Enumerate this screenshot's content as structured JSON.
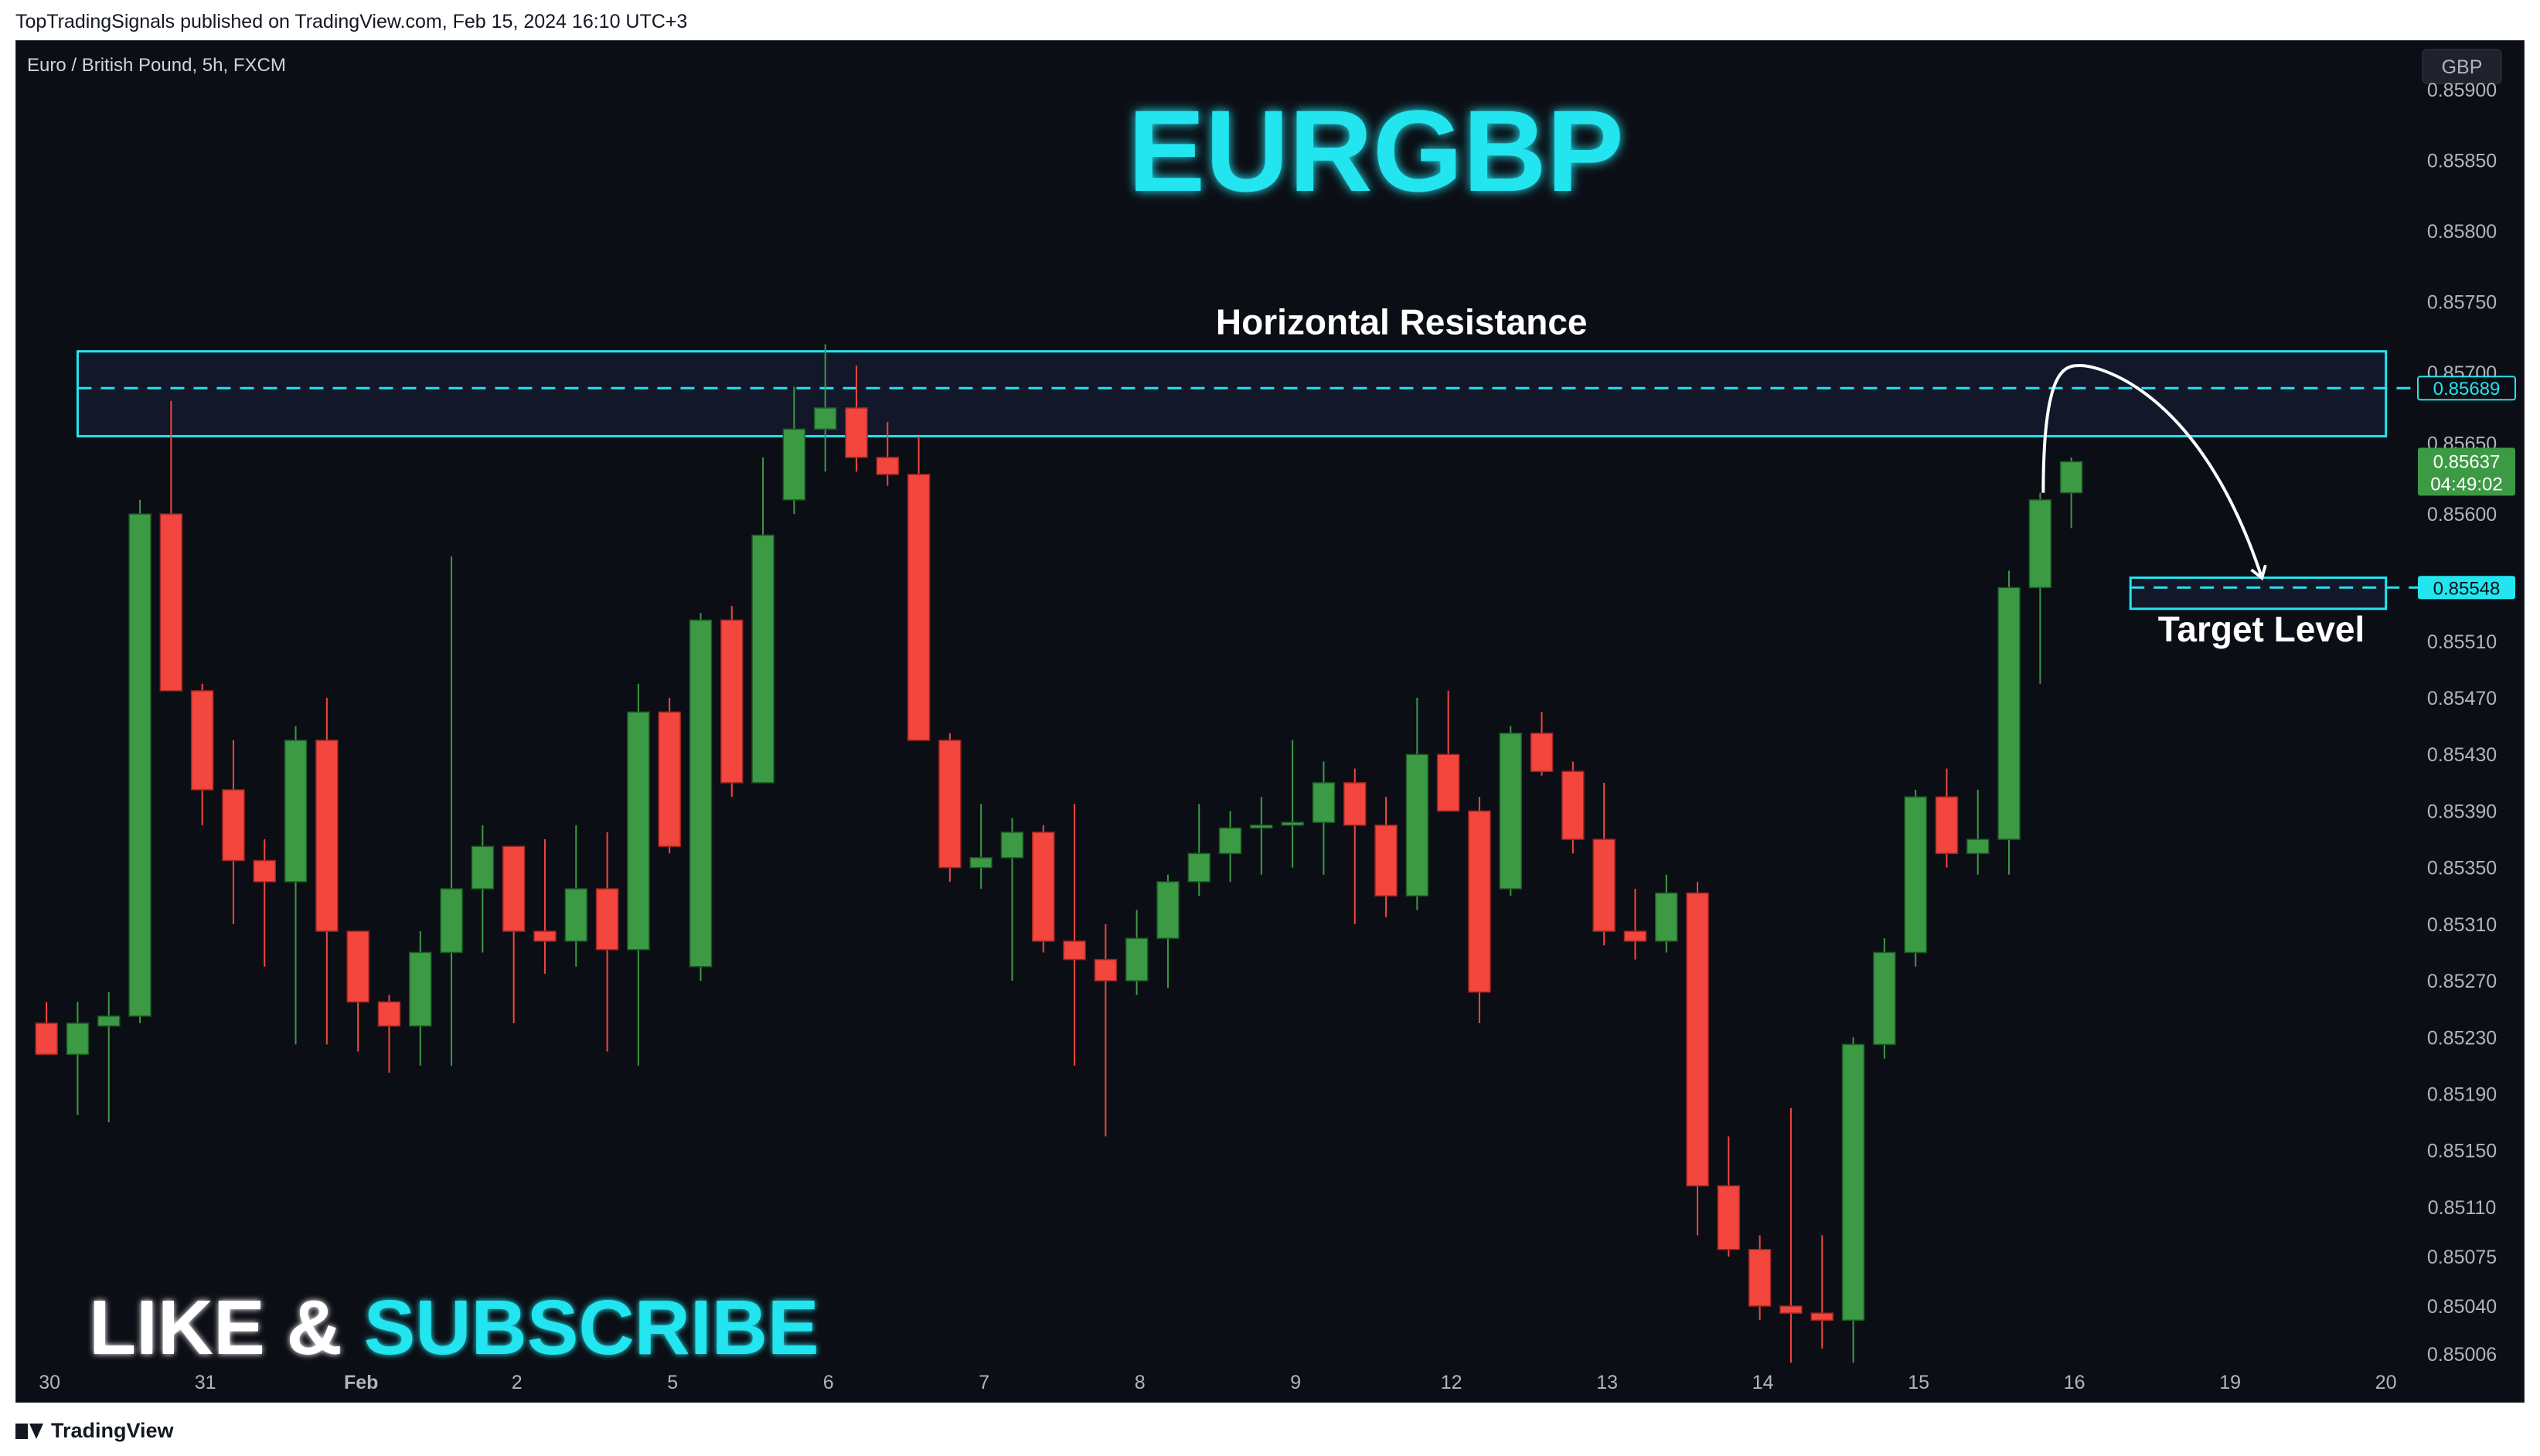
{
  "publish_line": "TopTradingSignals published on TradingView.com, Feb 15, 2024 16:10 UTC+3",
  "footer_logo_text": "TradingView",
  "colors": {
    "background": "#0c0e15",
    "bull": "#3c9a45",
    "bear": "#f2463e",
    "accent": "#22e5ef",
    "axis_text": "#b2b5be"
  },
  "chart_data": {
    "type": "candlestick",
    "symbol_label": "Euro / British Pound, 5h, FXCM",
    "currency": "GBP",
    "title": "EURGBP",
    "ylim": [
      0.84987,
      0.85935
    ],
    "y_ticks": [
      "0.85900",
      "0.85850",
      "0.85800",
      "0.85750",
      "0.85700",
      "0.85650",
      "0.85600",
      "0.85510",
      "0.85470",
      "0.85430",
      "0.85390",
      "0.85350",
      "0.85310",
      "0.85270",
      "0.85230",
      "0.85190",
      "0.85150",
      "0.85110",
      "0.85075",
      "0.85040",
      "0.85006"
    ],
    "x_ticks": [
      {
        "label": "30",
        "index": 0.6
      },
      {
        "label": "31",
        "index": 5.6
      },
      {
        "label": "Feb",
        "index": 10.6
      },
      {
        "label": "2",
        "index": 15.6
      },
      {
        "label": "5",
        "index": 20.6
      },
      {
        "label": "6",
        "index": 25.6
      },
      {
        "label": "7",
        "index": 30.6
      },
      {
        "label": "8",
        "index": 35.6
      },
      {
        "label": "9",
        "index": 40.6
      },
      {
        "label": "12",
        "index": 45.6
      },
      {
        "label": "13",
        "index": 50.6
      },
      {
        "label": "14",
        "index": 55.6
      },
      {
        "label": "15",
        "index": 60.6
      },
      {
        "label": "16",
        "index": 65.6
      },
      {
        "label": "19",
        "index": 70.6
      },
      {
        "label": "20",
        "index": 75.6
      }
    ],
    "candles": [
      {
        "o": 0.8524,
        "h": 0.85255,
        "l": 0.8522,
        "c": 0.85218
      },
      {
        "o": 0.85218,
        "h": 0.85255,
        "l": 0.85175,
        "c": 0.8524
      },
      {
        "o": 0.85238,
        "h": 0.85262,
        "l": 0.8517,
        "c": 0.85245
      },
      {
        "o": 0.85245,
        "h": 0.8561,
        "l": 0.8524,
        "c": 0.856
      },
      {
        "o": 0.856,
        "h": 0.8568,
        "l": 0.85475,
        "c": 0.85475
      },
      {
        "o": 0.85475,
        "h": 0.8548,
        "l": 0.8538,
        "c": 0.85405
      },
      {
        "o": 0.85405,
        "h": 0.8544,
        "l": 0.8531,
        "c": 0.85355
      },
      {
        "o": 0.85355,
        "h": 0.8537,
        "l": 0.8528,
        "c": 0.8534
      },
      {
        "o": 0.8534,
        "h": 0.8545,
        "l": 0.85225,
        "c": 0.8544
      },
      {
        "o": 0.8544,
        "h": 0.8547,
        "l": 0.85225,
        "c": 0.85305
      },
      {
        "o": 0.85305,
        "h": 0.85305,
        "l": 0.8522,
        "c": 0.85255
      },
      {
        "o": 0.85255,
        "h": 0.8526,
        "l": 0.85205,
        "c": 0.85238
      },
      {
        "o": 0.85238,
        "h": 0.85305,
        "l": 0.8521,
        "c": 0.8529
      },
      {
        "o": 0.8529,
        "h": 0.8557,
        "l": 0.8521,
        "c": 0.85335
      },
      {
        "o": 0.85335,
        "h": 0.8538,
        "l": 0.8529,
        "c": 0.85365
      },
      {
        "o": 0.85365,
        "h": 0.85365,
        "l": 0.8524,
        "c": 0.85305
      },
      {
        "o": 0.85305,
        "h": 0.8537,
        "l": 0.85275,
        "c": 0.85298
      },
      {
        "o": 0.85298,
        "h": 0.8538,
        "l": 0.8528,
        "c": 0.85335
      },
      {
        "o": 0.85335,
        "h": 0.85375,
        "l": 0.8522,
        "c": 0.85292
      },
      {
        "o": 0.85292,
        "h": 0.8548,
        "l": 0.8521,
        "c": 0.8546
      },
      {
        "o": 0.8546,
        "h": 0.8547,
        "l": 0.8536,
        "c": 0.85365
      },
      {
        "o": 0.8528,
        "h": 0.8553,
        "l": 0.8527,
        "c": 0.85525
      },
      {
        "o": 0.85525,
        "h": 0.85535,
        "l": 0.854,
        "c": 0.8541
      },
      {
        "o": 0.8541,
        "h": 0.8564,
        "l": 0.8541,
        "c": 0.85585
      },
      {
        "o": 0.8561,
        "h": 0.8569,
        "l": 0.856,
        "c": 0.8566
      },
      {
        "o": 0.8566,
        "h": 0.8572,
        "l": 0.8563,
        "c": 0.85675
      },
      {
        "o": 0.85675,
        "h": 0.85705,
        "l": 0.8563,
        "c": 0.8564
      },
      {
        "o": 0.8564,
        "h": 0.85665,
        "l": 0.8562,
        "c": 0.85628
      },
      {
        "o": 0.85628,
        "h": 0.85655,
        "l": 0.8544,
        "c": 0.8544
      },
      {
        "o": 0.8544,
        "h": 0.85445,
        "l": 0.8534,
        "c": 0.8535
      },
      {
        "o": 0.8535,
        "h": 0.85395,
        "l": 0.85335,
        "c": 0.85357
      },
      {
        "o": 0.85357,
        "h": 0.85385,
        "l": 0.8527,
        "c": 0.85375
      },
      {
        "o": 0.85375,
        "h": 0.8538,
        "l": 0.8529,
        "c": 0.85298
      },
      {
        "o": 0.85298,
        "h": 0.85395,
        "l": 0.8521,
        "c": 0.85285
      },
      {
        "o": 0.85285,
        "h": 0.8531,
        "l": 0.8516,
        "c": 0.8527
      },
      {
        "o": 0.8527,
        "h": 0.8532,
        "l": 0.8526,
        "c": 0.853
      },
      {
        "o": 0.853,
        "h": 0.85345,
        "l": 0.85265,
        "c": 0.8534
      },
      {
        "o": 0.8534,
        "h": 0.85395,
        "l": 0.8533,
        "c": 0.8536
      },
      {
        "o": 0.8536,
        "h": 0.8539,
        "l": 0.8534,
        "c": 0.85378
      },
      {
        "o": 0.85378,
        "h": 0.854,
        "l": 0.85345,
        "c": 0.8538
      },
      {
        "o": 0.8538,
        "h": 0.8544,
        "l": 0.8535,
        "c": 0.85382
      },
      {
        "o": 0.85382,
        "h": 0.85425,
        "l": 0.85345,
        "c": 0.8541
      },
      {
        "o": 0.8541,
        "h": 0.8542,
        "l": 0.8531,
        "c": 0.8538
      },
      {
        "o": 0.8538,
        "h": 0.854,
        "l": 0.85315,
        "c": 0.8533
      },
      {
        "o": 0.8533,
        "h": 0.8547,
        "l": 0.8532,
        "c": 0.8543
      },
      {
        "o": 0.8543,
        "h": 0.85475,
        "l": 0.8539,
        "c": 0.8539
      },
      {
        "o": 0.8539,
        "h": 0.854,
        "l": 0.8524,
        "c": 0.85262
      },
      {
        "o": 0.85335,
        "h": 0.8545,
        "l": 0.8533,
        "c": 0.85445
      },
      {
        "o": 0.85445,
        "h": 0.8546,
        "l": 0.85415,
        "c": 0.85418
      },
      {
        "o": 0.85418,
        "h": 0.85425,
        "l": 0.8536,
        "c": 0.8537
      },
      {
        "o": 0.8537,
        "h": 0.8541,
        "l": 0.85295,
        "c": 0.85305
      },
      {
        "o": 0.85305,
        "h": 0.85335,
        "l": 0.85285,
        "c": 0.85298
      },
      {
        "o": 0.85298,
        "h": 0.85345,
        "l": 0.8529,
        "c": 0.85332
      },
      {
        "o": 0.85332,
        "h": 0.8534,
        "l": 0.8509,
        "c": 0.85125
      },
      {
        "o": 0.85125,
        "h": 0.8516,
        "l": 0.85075,
        "c": 0.8508
      },
      {
        "o": 0.8508,
        "h": 0.8509,
        "l": 0.8503,
        "c": 0.8504
      },
      {
        "o": 0.8504,
        "h": 0.8518,
        "l": 0.85,
        "c": 0.85035
      },
      {
        "o": 0.85035,
        "h": 0.8509,
        "l": 0.8501,
        "c": 0.8503
      },
      {
        "o": 0.8503,
        "h": 0.8523,
        "l": 0.85,
        "c": 0.85225
      },
      {
        "o": 0.85225,
        "h": 0.853,
        "l": 0.85215,
        "c": 0.8529
      },
      {
        "o": 0.8529,
        "h": 0.85405,
        "l": 0.8528,
        "c": 0.854
      },
      {
        "o": 0.854,
        "h": 0.8542,
        "l": 0.8535,
        "c": 0.8536
      },
      {
        "o": 0.8536,
        "h": 0.85405,
        "l": 0.85345,
        "c": 0.8537
      },
      {
        "o": 0.8537,
        "h": 0.8556,
        "l": 0.85345,
        "c": 0.85548
      },
      {
        "o": 0.85548,
        "h": 0.85615,
        "l": 0.8548,
        "c": 0.8561
      },
      {
        "o": 0.85615,
        "h": 0.8564,
        "l": 0.8559,
        "c": 0.85637
      }
    ],
    "resistance_zone": {
      "from": 0.85655,
      "to": 0.85715,
      "level": 0.85689,
      "x_start_index": 1.5,
      "x_end_index": 75.6
    },
    "target_zone": {
      "from": 0.85533,
      "to": 0.85555,
      "level": 0.85548,
      "x_start_index": 67.4,
      "x_end_index": 75.6
    },
    "forecast_path": [
      {
        "index": 64.6,
        "price": 0.85615
      },
      {
        "index": 65.8,
        "price": 0.85705
      },
      {
        "index": 67.6,
        "price": 0.8569
      },
      {
        "index": 71.6,
        "price": 0.85556
      }
    ],
    "annotations": [
      {
        "text": "Horizontal Resistance",
        "index": 44.0,
        "price": 0.85727
      },
      {
        "text": "Target Level",
        "index": 71.6,
        "price": 0.8551
      }
    ],
    "price_badges": {
      "resistance": "0.85689",
      "last_price": "0.85637",
      "countdown": "04:49:02",
      "target": "0.85548"
    },
    "cta": {
      "like": "LIKE & ",
      "subscribe": "SUBSCRIBE"
    }
  }
}
